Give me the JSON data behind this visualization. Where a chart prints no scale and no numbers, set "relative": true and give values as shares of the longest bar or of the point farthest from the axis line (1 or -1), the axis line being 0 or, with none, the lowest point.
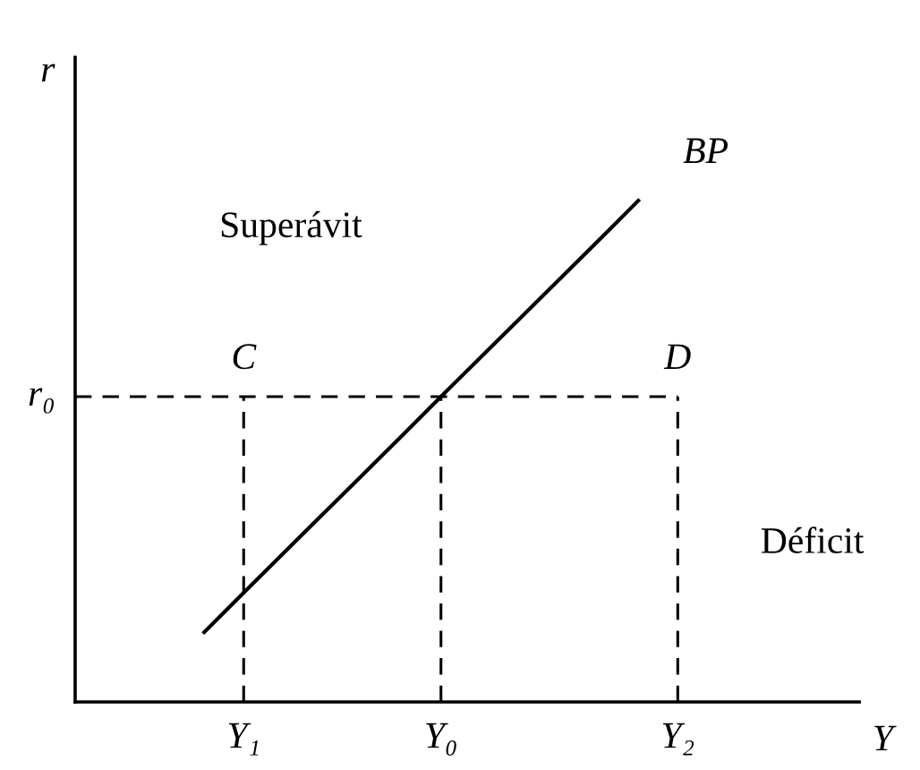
{
  "chart_data": {
    "type": "line",
    "relative": true,
    "xlabel": "Y",
    "ylabel": "r",
    "categories": [
      null,
      "Y₁",
      null,
      null,
      null,
      null,
      "Y₀",
      null,
      null,
      null,
      null,
      null,
      "Y₂"
    ],
    "series": [
      {
        "name": "BP",
        "color": "#000000",
        "line_style": "solid",
        "values": [
          0.139,
          0.218,
          0.296,
          0.374,
          0.452,
          0.53,
          0.609,
          0.687,
          0.765,
          0.843,
          0.921,
          1,
          null
        ]
      }
    ],
    "ref_lines": [
      {
        "axis": "y",
        "value": 0.609,
        "label": "r₀",
        "color": "#000000",
        "line_style": "dashed"
      },
      {
        "axis": "x",
        "value": "Y₁",
        "color": "#000000",
        "line_style": "dashed"
      },
      {
        "axis": "x",
        "value": "Y₀",
        "color": "#000000",
        "line_style": "dashed"
      },
      {
        "axis": "x",
        "value": "Y₂",
        "color": "#000000",
        "line_style": "dashed"
      }
    ],
    "annotations": [
      {
        "text": "C",
        "x": "Y₁",
        "y": 0.609
      },
      {
        "text": "D",
        "x": "Y₂",
        "y": 0.609
      },
      "Superávit",
      "Déficit"
    ]
  }
}
